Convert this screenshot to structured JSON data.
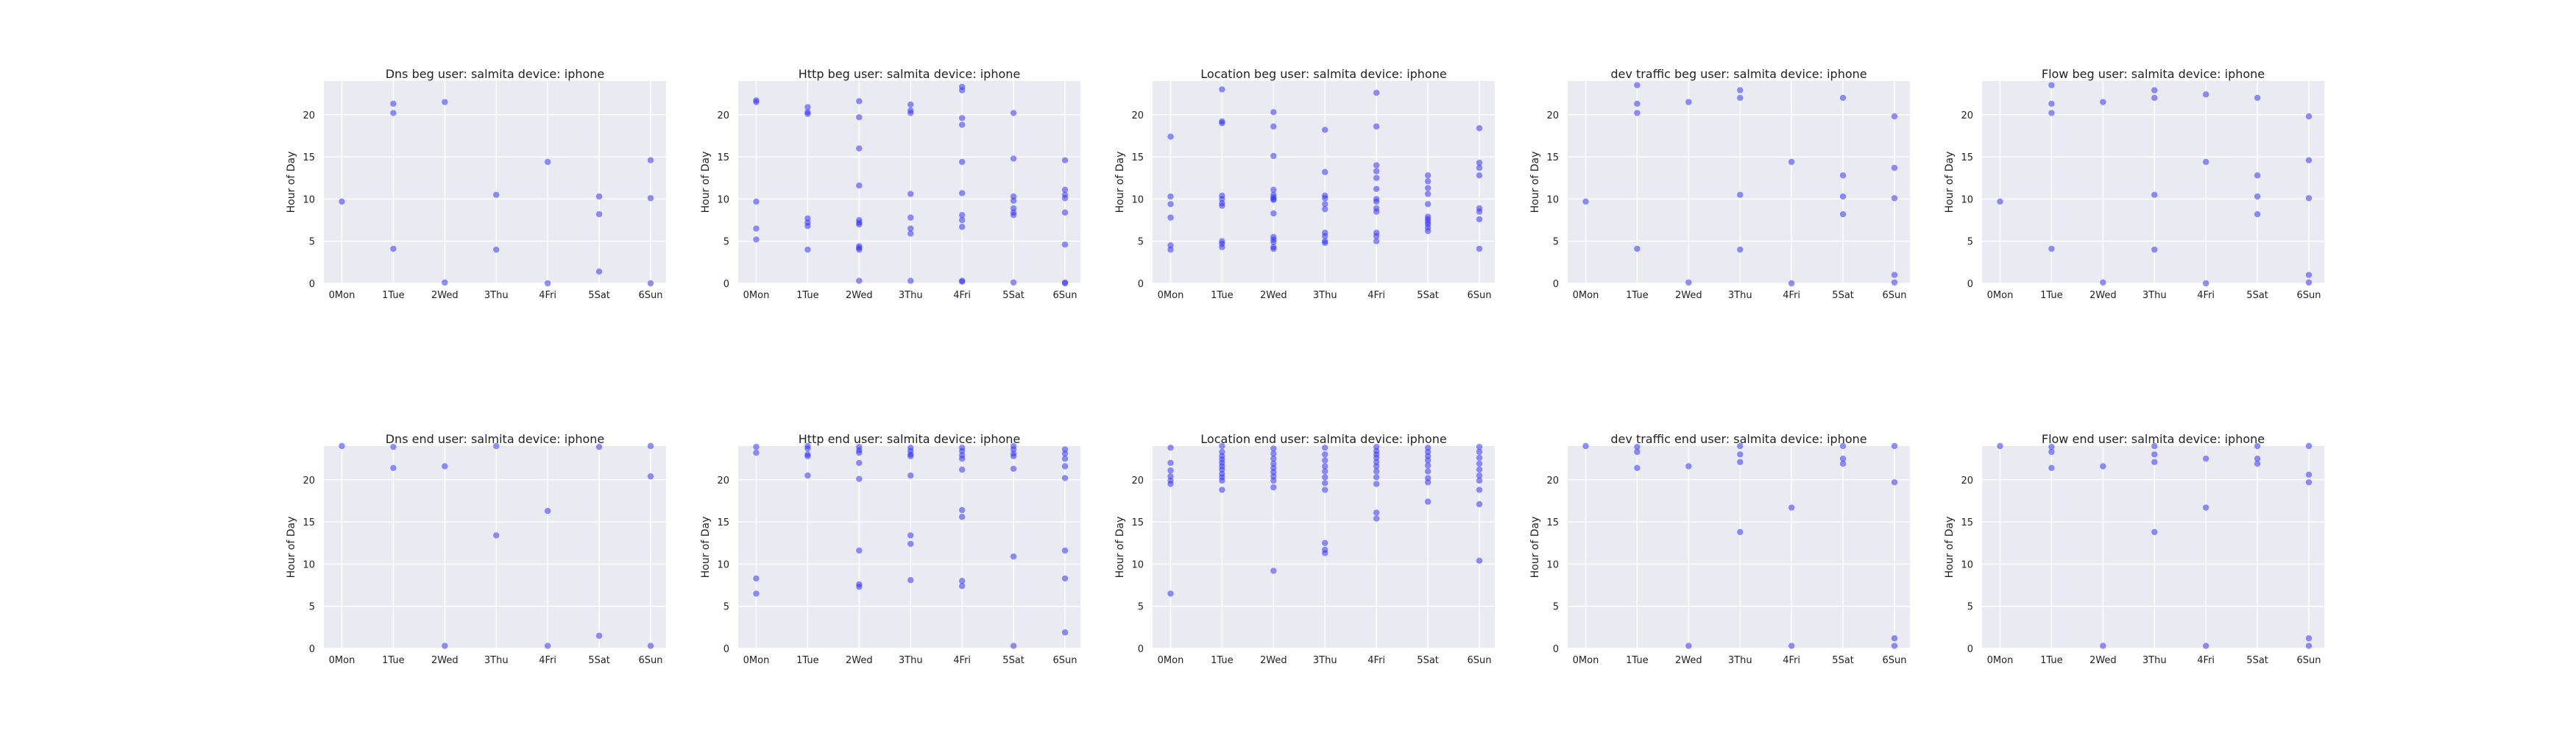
{
  "figure": {
    "background": "#ffffff",
    "plot_background": "#eaeaf2",
    "grid_color": "#ffffff",
    "point_color": "#3333ff"
  },
  "chart_data": [
    {
      "type": "scatter",
      "title": "Dns beg user: salmita device: iphone",
      "xlabel": "",
      "ylabel": "Hour of Day",
      "categories": [
        "0Mon",
        "1Tue",
        "2Wed",
        "3Thu",
        "4Fri",
        "5Sat",
        "6Sun"
      ],
      "xlim": [
        -0.35,
        6.3
      ],
      "ylim": [
        0,
        24
      ],
      "yticks": [
        0,
        5,
        10,
        15,
        20
      ],
      "grid": true,
      "legend": "none",
      "series": [
        {
          "x": [
            0,
            1,
            1,
            1,
            2,
            2,
            3,
            3,
            4,
            4,
            5,
            5,
            5,
            6,
            6,
            6
          ],
          "y": [
            9.7,
            21.3,
            20.2,
            4.1,
            21.5,
            0.1,
            10.5,
            4.0,
            14.4,
            0,
            10.3,
            8.2,
            1.4,
            14.6,
            10.1,
            0
          ]
        }
      ]
    },
    {
      "type": "scatter",
      "title": "Http beg user: salmita device: iphone",
      "xlabel": "",
      "ylabel": "Hour of Day",
      "categories": [
        "0Mon",
        "1Tue",
        "2Wed",
        "3Thu",
        "4Fri",
        "5Sat",
        "6Sun"
      ],
      "xlim": [
        -0.35,
        6.3
      ],
      "ylim": [
        0,
        24
      ],
      "yticks": [
        0,
        5,
        10,
        15,
        20
      ],
      "grid": true,
      "legend": "none",
      "series": [
        {
          "x": [
            0,
            0,
            0,
            0,
            0,
            1,
            1,
            1,
            1,
            1,
            1,
            1,
            2,
            2,
            2,
            2,
            2,
            2,
            2,
            2,
            2,
            2,
            2,
            3,
            3,
            3,
            3,
            3,
            3,
            3,
            3,
            4,
            4,
            4,
            4,
            4,
            4,
            4,
            4,
            4,
            4,
            4,
            5,
            5,
            5,
            5,
            5,
            5,
            5,
            5,
            6,
            6,
            6,
            6,
            6,
            6,
            6,
            6
          ],
          "y": [
            21.5,
            21.7,
            9.7,
            6.5,
            5.2,
            20.9,
            20.3,
            20.1,
            7.7,
            7.2,
            6.8,
            4.0,
            21.6,
            19.7,
            16.0,
            11.6,
            7.5,
            7.2,
            7.0,
            4.4,
            4.2,
            4.0,
            0.3,
            21.2,
            20.5,
            20.2,
            10.6,
            7.8,
            6.5,
            5.9,
            0.3,
            23.3,
            22.9,
            19.6,
            18.8,
            14.4,
            10.7,
            8.1,
            7.5,
            6.7,
            0.3,
            0.2,
            20.2,
            14.8,
            10.3,
            9.8,
            8.9,
            8.4,
            8.1,
            0.1,
            14.6,
            11.1,
            10.5,
            10.1,
            8.4,
            4.6,
            0.1,
            0
          ]
        }
      ]
    },
    {
      "type": "scatter",
      "title": "Location beg user: salmita device: iphone",
      "xlabel": "",
      "ylabel": "Hour of Day",
      "categories": [
        "0Mon",
        "1Tue",
        "2Wed",
        "3Thu",
        "4Fri",
        "5Sat",
        "6Sun"
      ],
      "xlim": [
        -0.35,
        6.3
      ],
      "ylim": [
        0,
        24
      ],
      "yticks": [
        0,
        5,
        10,
        15,
        20
      ],
      "grid": true,
      "legend": "none",
      "series": [
        {
          "x": [
            0,
            0,
            0,
            0,
            0,
            0,
            1,
            1,
            1,
            1,
            1,
            1,
            1,
            1,
            1,
            1,
            2,
            2,
            2,
            2,
            2,
            2,
            2,
            2,
            2,
            2,
            2,
            2,
            2,
            2,
            3,
            3,
            3,
            3,
            3,
            3,
            3,
            3,
            3,
            3,
            4,
            4,
            4,
            4,
            4,
            4,
            4,
            4,
            4,
            4,
            4,
            4,
            4,
            5,
            5,
            5,
            5,
            5,
            5,
            5,
            5,
            5,
            5,
            5,
            6,
            6,
            6,
            6,
            6,
            6,
            6,
            6
          ],
          "y": [
            17.4,
            10.3,
            9.4,
            7.8,
            4.5,
            4.0,
            23.0,
            19.2,
            19.0,
            10.4,
            10.0,
            9.5,
            9.2,
            5.0,
            4.7,
            4.3,
            20.3,
            18.6,
            15.1,
            11.1,
            10.5,
            10.2,
            10.0,
            9.9,
            8.3,
            5.5,
            5.2,
            4.9,
            4.3,
            4.1,
            18.2,
            13.2,
            10.4,
            10.1,
            9.4,
            8.8,
            6.0,
            5.6,
            5.0,
            4.8,
            22.6,
            18.6,
            14.0,
            13.3,
            12.5,
            11.2,
            10.0,
            9.7,
            8.9,
            8.5,
            6.0,
            5.6,
            5.0,
            12.8,
            12.1,
            11.3,
            10.6,
            9.4,
            7.9,
            7.6,
            7.3,
            7.0,
            6.6,
            6.2,
            18.4,
            14.3,
            13.7,
            12.8,
            8.9,
            8.5,
            7.6,
            4.1
          ]
        }
      ]
    },
    {
      "type": "scatter",
      "title": "dev traffic beg user: salmita device: iphone",
      "xlabel": "",
      "ylabel": "Hour of Day",
      "categories": [
        "0Mon",
        "1Tue",
        "2Wed",
        "3Thu",
        "4Fri",
        "5Sat",
        "6Sun"
      ],
      "xlim": [
        -0.35,
        6.3
      ],
      "ylim": [
        0,
        24
      ],
      "yticks": [
        0,
        5,
        10,
        15,
        20
      ],
      "grid": true,
      "legend": "none",
      "series": [
        {
          "x": [
            0,
            1,
            1,
            1,
            1,
            2,
            2,
            3,
            3,
            3,
            3,
            4,
            4,
            5,
            5,
            5,
            5,
            6,
            6,
            6,
            6,
            6
          ],
          "y": [
            9.7,
            23.5,
            21.3,
            20.2,
            4.1,
            21.5,
            0.1,
            22.9,
            22.0,
            10.5,
            4.0,
            14.4,
            0,
            22.0,
            12.8,
            10.3,
            8.2,
            19.8,
            13.7,
            10.1,
            1.0,
            0.1
          ]
        }
      ]
    },
    {
      "type": "scatter",
      "title": "Flow beg user: salmita device: iphone",
      "xlabel": "",
      "ylabel": "Hour of Day",
      "categories": [
        "0Mon",
        "1Tue",
        "2Wed",
        "3Thu",
        "4Fri",
        "5Sat",
        "6Sun"
      ],
      "xlim": [
        -0.35,
        6.3
      ],
      "ylim": [
        0,
        24
      ],
      "yticks": [
        0,
        5,
        10,
        15,
        20
      ],
      "grid": true,
      "legend": "none",
      "series": [
        {
          "x": [
            0,
            1,
            1,
            1,
            1,
            2,
            2,
            3,
            3,
            3,
            3,
            4,
            4,
            4,
            5,
            5,
            5,
            5,
            6,
            6,
            6,
            6,
            6
          ],
          "y": [
            9.7,
            23.5,
            21.3,
            20.2,
            4.1,
            21.5,
            0.1,
            22.9,
            22.0,
            10.5,
            4.0,
            22.4,
            14.4,
            0,
            22.0,
            12.8,
            10.3,
            8.2,
            19.8,
            14.6,
            10.1,
            1.0,
            0.1
          ]
        }
      ]
    },
    {
      "type": "scatter",
      "title": "Dns end user: salmita device: iphone",
      "xlabel": "",
      "ylabel": "Hour of Day",
      "categories": [
        "0Mon",
        "1Tue",
        "2Wed",
        "3Thu",
        "4Fri",
        "5Sat",
        "6Sun"
      ],
      "xlim": [
        -0.35,
        6.3
      ],
      "ylim": [
        0,
        24
      ],
      "yticks": [
        0,
        5,
        10,
        15,
        20
      ],
      "grid": true,
      "legend": "none",
      "series": [
        {
          "x": [
            0,
            1,
            1,
            2,
            2,
            3,
            3,
            4,
            4,
            5,
            5,
            6,
            6,
            6
          ],
          "y": [
            24.0,
            23.9,
            21.4,
            21.6,
            0.3,
            24.0,
            13.4,
            16.3,
            0.3,
            23.9,
            1.5,
            24.0,
            20.4,
            0.3
          ]
        }
      ]
    },
    {
      "type": "scatter",
      "title": "Http end user: salmita device: iphone",
      "xlabel": "",
      "ylabel": "Hour of Day",
      "categories": [
        "0Mon",
        "1Tue",
        "2Wed",
        "3Thu",
        "4Fri",
        "5Sat",
        "6Sun"
      ],
      "xlim": [
        -0.35,
        6.3
      ],
      "ylim": [
        0,
        24
      ],
      "yticks": [
        0,
        5,
        10,
        15,
        20
      ],
      "grid": true,
      "legend": "none",
      "series": [
        {
          "x": [
            0,
            0,
            0,
            0,
            1,
            1,
            1,
            1,
            1,
            2,
            2,
            2,
            2,
            2,
            2,
            2,
            2,
            3,
            3,
            3,
            3,
            3,
            3,
            3,
            3,
            4,
            4,
            4,
            4,
            4,
            4,
            4,
            4,
            4,
            5,
            5,
            5,
            5,
            5,
            5,
            5,
            6,
            6,
            6,
            6,
            6,
            6,
            6,
            6
          ],
          "y": [
            23.9,
            23.2,
            8.3,
            6.5,
            24.0,
            23.7,
            23.0,
            22.8,
            20.5,
            23.9,
            23.5,
            23.2,
            22.0,
            20.1,
            11.6,
            7.6,
            7.3,
            23.8,
            23.4,
            23.0,
            22.8,
            20.5,
            13.4,
            12.4,
            8.1,
            23.8,
            23.4,
            22.9,
            22.5,
            21.2,
            16.4,
            15.6,
            8.0,
            7.4,
            24.0,
            23.6,
            23.1,
            22.8,
            21.3,
            10.9,
            0.3,
            23.6,
            23.1,
            22.5,
            21.6,
            20.2,
            11.6,
            8.3,
            1.9
          ]
        }
      ]
    },
    {
      "type": "scatter",
      "title": "Location end user: salmita device: iphone",
      "xlabel": "",
      "ylabel": "Hour of Day",
      "categories": [
        "0Mon",
        "1Tue",
        "2Wed",
        "3Thu",
        "4Fri",
        "5Sat",
        "6Sun"
      ],
      "xlim": [
        -0.35,
        6.3
      ],
      "ylim": [
        0,
        24
      ],
      "yticks": [
        0,
        5,
        10,
        15,
        20
      ],
      "grid": true,
      "legend": "none",
      "series": [
        {
          "x": [
            0,
            0,
            0,
            0,
            0,
            0,
            0,
            1,
            1,
            1,
            1,
            1,
            1,
            1,
            1,
            1,
            1,
            1,
            2,
            2,
            2,
            2,
            2,
            2,
            2,
            2,
            2,
            2,
            3,
            3,
            3,
            3,
            3,
            3,
            3,
            3,
            3,
            3,
            3,
            4,
            4,
            4,
            4,
            4,
            4,
            4,
            4,
            4,
            4,
            4,
            5,
            5,
            5,
            5,
            5,
            5,
            5,
            5,
            5,
            6,
            6,
            6,
            6,
            6,
            6,
            6,
            6,
            6,
            6
          ],
          "y": [
            23.8,
            22.0,
            21.1,
            20.4,
            19.9,
            19.5,
            6.5,
            24.0,
            23.3,
            22.8,
            22.4,
            22.0,
            21.6,
            21.2,
            20.7,
            20.3,
            19.9,
            18.8,
            23.7,
            23.1,
            22.5,
            21.9,
            21.4,
            20.9,
            20.4,
            19.9,
            19.1,
            9.2,
            23.8,
            23.0,
            22.3,
            21.6,
            21.0,
            20.3,
            19.6,
            18.8,
            12.5,
            11.7,
            11.3,
            23.9,
            23.4,
            23.0,
            22.6,
            22.1,
            21.6,
            21.0,
            20.3,
            19.5,
            16.1,
            15.4,
            23.8,
            23.3,
            22.8,
            22.3,
            21.7,
            21.0,
            20.2,
            19.7,
            17.4,
            23.9,
            23.3,
            22.6,
            21.9,
            21.2,
            20.5,
            19.9,
            18.8,
            17.1,
            10.4
          ]
        }
      ]
    },
    {
      "type": "scatter",
      "title": "dev traffic end user: salmita device: iphone",
      "xlabel": "",
      "ylabel": "Hour of Day",
      "categories": [
        "0Mon",
        "1Tue",
        "2Wed",
        "3Thu",
        "4Fri",
        "5Sat",
        "6Sun"
      ],
      "xlim": [
        -0.35,
        6.3
      ],
      "ylim": [
        0,
        24
      ],
      "yticks": [
        0,
        5,
        10,
        15,
        20
      ],
      "grid": true,
      "legend": "none",
      "series": [
        {
          "x": [
            0,
            1,
            1,
            1,
            2,
            2,
            3,
            3,
            3,
            3,
            4,
            4,
            5,
            5,
            5,
            6,
            6,
            6,
            6
          ],
          "y": [
            24.0,
            23.9,
            23.3,
            21.4,
            21.6,
            0.3,
            24.0,
            23.0,
            22.1,
            13.8,
            16.7,
            0.3,
            24.0,
            22.5,
            21.9,
            24.0,
            19.7,
            1.2,
            0.3
          ]
        }
      ]
    },
    {
      "type": "scatter",
      "title": "Flow end user: salmita device: iphone",
      "xlabel": "",
      "ylabel": "Hour of Day",
      "categories": [
        "0Mon",
        "1Tue",
        "2Wed",
        "3Thu",
        "4Fri",
        "5Sat",
        "6Sun"
      ],
      "xlim": [
        -0.35,
        6.3
      ],
      "ylim": [
        0,
        24
      ],
      "yticks": [
        0,
        5,
        10,
        15,
        20
      ],
      "grid": true,
      "legend": "none",
      "series": [
        {
          "x": [
            0,
            1,
            1,
            1,
            2,
            2,
            3,
            3,
            3,
            3,
            4,
            4,
            4,
            5,
            5,
            5,
            6,
            6,
            6,
            6,
            6
          ],
          "y": [
            24.0,
            23.9,
            23.3,
            21.4,
            21.6,
            0.3,
            24.0,
            23.0,
            22.1,
            13.8,
            22.5,
            16.7,
            0.3,
            24.0,
            22.5,
            21.9,
            24.0,
            20.6,
            19.7,
            1.2,
            0.3
          ]
        }
      ]
    }
  ]
}
